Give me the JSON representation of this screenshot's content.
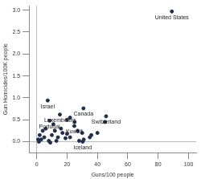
{
  "chart_data": {
    "type": "scatter",
    "x_label": "Guns/100 people",
    "y_label": "Gun Homicides/100K people",
    "x": [
      89,
      7.3,
      30.8,
      45.7,
      15.3,
      8.5,
      24.8,
      30.3,
      6,
      12,
      17,
      20,
      22,
      25,
      10,
      3,
      5,
      8,
      1,
      14,
      19,
      30,
      31,
      35,
      40,
      45,
      1.5,
      4,
      11,
      16,
      20,
      27,
      9,
      2,
      13,
      22,
      28,
      36
    ],
    "values": [
      2.97,
      0.94,
      0.76,
      0.58,
      0.62,
      0.48,
      0.36,
      0.0,
      0.3,
      0.25,
      0.2,
      0.5,
      0.55,
      0.45,
      0.15,
      0.05,
      0.1,
      0.02,
      0.05,
      0.1,
      0.08,
      0.2,
      0.05,
      0.1,
      0.2,
      0.45,
      0.0,
      0.25,
      0.4,
      0.3,
      0.18,
      0.25,
      -0.02,
      0.15,
      0.02,
      0.1,
      0.02,
      0.15
    ],
    "point_labels": [
      "United States",
      "Israel",
      "Canada",
      "Switzerland",
      "Luxembourg",
      "Portugal",
      "Kuwait",
      "Iceland",
      null,
      null,
      null,
      null,
      null,
      null,
      null,
      null,
      null,
      null,
      null,
      null,
      null,
      null,
      null,
      null,
      null,
      null,
      null,
      null,
      null,
      null,
      null,
      null,
      null,
      null,
      null,
      null,
      null,
      null
    ],
    "color": "#1f2d4e",
    "xlim": [
      -5,
      105
    ],
    "xticks": [
      0,
      20,
      40,
      60,
      80,
      100
    ],
    "ylim": [
      -0.25,
      3.1
    ],
    "yticks": [
      {
        "value": 0,
        "label": "0.0"
      },
      {
        "value": 0.5,
        "label": "0.5"
      },
      {
        "value": 1,
        "label": "1.0"
      },
      {
        "value": 1.5,
        "label": "1.5"
      },
      {
        "value": 2,
        "label": "2.0"
      },
      {
        "value": 2.5,
        "label": "2.5"
      },
      {
        "value": 3,
        "label": "3.0"
      }
    ],
    "grid": false
  }
}
